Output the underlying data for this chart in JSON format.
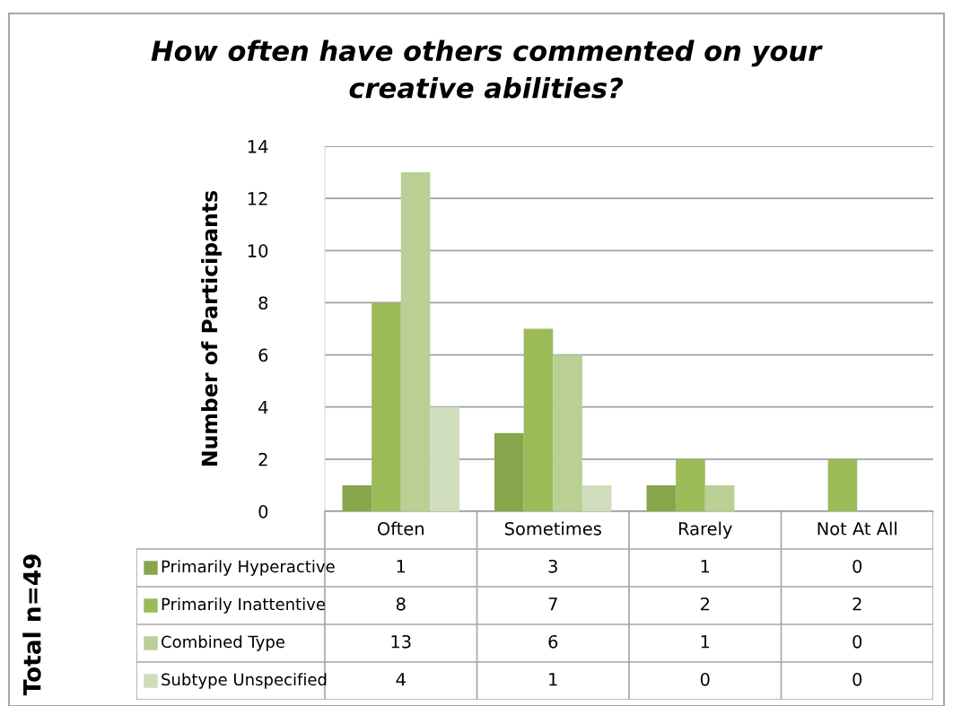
{
  "chart_data": {
    "type": "bar",
    "title": "How often have others commented on your\ncreative abilities?",
    "ylabel": "Number of Participants",
    "categories": [
      "Often",
      "Sometimes",
      "Rarely",
      "Not At All"
    ],
    "series": [
      {
        "name": "Primarily Hyperactive",
        "color": "#87a64c",
        "values": [
          1,
          3,
          1,
          0
        ]
      },
      {
        "name": "Primarily Inattentive",
        "color": "#9bbb59",
        "values": [
          8,
          7,
          2,
          2
        ]
      },
      {
        "name": "Combined Type",
        "color": "#b9cf94",
        "values": [
          13,
          6,
          1,
          0
        ]
      },
      {
        "name": "Subtype Unspecified",
        "color": "#d0ddbc",
        "values": [
          4,
          1,
          0,
          0
        ]
      }
    ],
    "ylim": [
      0,
      14
    ],
    "yticks": [
      0,
      2,
      4,
      6,
      8,
      10,
      12,
      14
    ],
    "grid": "y",
    "data_labels": true,
    "legend": "bottom left",
    "annotations": [
      "Total n=49"
    ]
  }
}
